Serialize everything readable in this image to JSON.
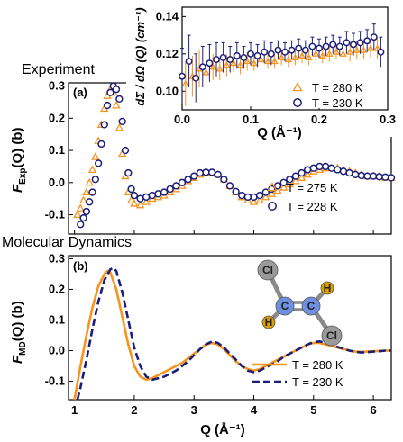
{
  "headings": {
    "experiment": "Experiment",
    "md": "Molecular Dynamics"
  },
  "chart_data": [
    {
      "id": "experiment",
      "type": "scatter",
      "panel_label": "(a)",
      "xlabel": "",
      "ylabel": "F_Exp(Q) (b)",
      "xlim": [
        0.9,
        6.3
      ],
      "ylim": [
        -0.16,
        0.31
      ],
      "yticks": [
        "-0.1",
        "0.0",
        "0.1",
        "0.2",
        "0.3"
      ],
      "legend_position": "lower-right",
      "series": [
        {
          "name": "T = 275 K",
          "marker": "triangle",
          "color": "#f7941d",
          "x": [
            1.05,
            1.1,
            1.15,
            1.2,
            1.25,
            1.3,
            1.35,
            1.4,
            1.45,
            1.5,
            1.55,
            1.6,
            1.65,
            1.7,
            1.75,
            1.8,
            1.85,
            1.9,
            1.95,
            2.0,
            2.1,
            2.2,
            2.3,
            2.4,
            2.5,
            2.6,
            2.7,
            2.8,
            2.9,
            3.0,
            3.1,
            3.2,
            3.3,
            3.4,
            3.5,
            3.6,
            3.7,
            3.8,
            3.9,
            4.0,
            4.1,
            4.2,
            4.3,
            4.4,
            4.5,
            4.6,
            4.7,
            4.8,
            4.9,
            5.0,
            5.1,
            5.2,
            5.3,
            5.4,
            5.5,
            5.6,
            5.7,
            5.8,
            5.9,
            6.0,
            6.1,
            6.2,
            6.3
          ],
          "y": [
            -0.1,
            -0.08,
            -0.055,
            -0.03,
            0.0,
            0.04,
            0.08,
            0.13,
            0.18,
            0.23,
            0.27,
            0.29,
            0.28,
            0.24,
            0.17,
            0.09,
            0.02,
            -0.03,
            -0.055,
            -0.065,
            -0.07,
            -0.06,
            -0.05,
            -0.045,
            -0.04,
            -0.03,
            -0.02,
            -0.01,
            0.005,
            0.015,
            0.025,
            0.03,
            0.03,
            0.025,
            0.01,
            -0.01,
            -0.03,
            -0.045,
            -0.055,
            -0.06,
            -0.055,
            -0.045,
            -0.035,
            -0.025,
            -0.015,
            -0.005,
            0.005,
            0.015,
            0.025,
            0.035,
            0.04,
            0.045,
            0.045,
            0.045,
            0.04,
            0.035,
            0.03,
            0.025,
            0.02,
            0.02,
            0.02,
            0.015,
            0.015
          ]
        },
        {
          "name": "T = 228 K",
          "marker": "circle",
          "color": "#1b1f7a",
          "x": [
            1.1,
            1.15,
            1.2,
            1.25,
            1.3,
            1.35,
            1.4,
            1.45,
            1.5,
            1.55,
            1.6,
            1.65,
            1.7,
            1.75,
            1.8,
            1.85,
            1.9,
            1.95,
            2.0,
            2.1,
            2.2,
            2.3,
            2.4,
            2.5,
            2.6,
            2.7,
            2.8,
            2.9,
            3.0,
            3.1,
            3.2,
            3.3,
            3.4,
            3.5,
            3.6,
            3.7,
            3.8,
            3.9,
            4.0,
            4.1,
            4.2,
            4.3,
            4.4,
            4.5,
            4.6,
            4.7,
            4.8,
            4.9,
            5.0,
            5.1,
            5.2,
            5.3,
            5.4,
            5.5,
            5.6,
            5.7,
            5.8,
            5.9,
            6.0,
            6.1,
            6.2,
            6.3
          ],
          "y": [
            -0.13,
            -0.11,
            -0.09,
            -0.06,
            -0.03,
            0.01,
            0.06,
            0.12,
            0.18,
            0.24,
            0.28,
            0.3,
            0.29,
            0.26,
            0.19,
            0.1,
            0.03,
            -0.02,
            -0.04,
            -0.05,
            -0.045,
            -0.04,
            -0.035,
            -0.03,
            -0.02,
            -0.01,
            0.0,
            0.01,
            0.02,
            0.03,
            0.032,
            0.032,
            0.025,
            0.01,
            -0.01,
            -0.028,
            -0.04,
            -0.045,
            -0.045,
            -0.04,
            -0.03,
            -0.02,
            -0.01,
            0.0,
            0.01,
            0.02,
            0.03,
            0.04,
            0.045,
            0.05,
            0.05,
            0.045,
            0.04,
            0.035,
            0.03,
            0.025,
            0.022,
            0.02,
            0.02,
            0.018,
            0.017,
            0.015
          ]
        }
      ]
    },
    {
      "id": "inset",
      "type": "scatter",
      "xlabel": "Q (Å⁻¹)",
      "ylabel": "dΣ / dΩ (Q) (cm⁻¹)",
      "xlim": [
        0.0,
        0.3
      ],
      "ylim": [
        0.09,
        0.145
      ],
      "xticks": [
        "0.0",
        "0.1",
        "0.2",
        "0.3"
      ],
      "yticks": [
        "0.10",
        "0.12",
        "0.14"
      ],
      "legend_position": "lower-right",
      "series": [
        {
          "name": "T = 280 K",
          "marker": "triangle",
          "color": "#f7941d",
          "x": [
            0.005,
            0.015,
            0.025,
            0.035,
            0.045,
            0.055,
            0.065,
            0.075,
            0.085,
            0.095,
            0.105,
            0.115,
            0.125,
            0.135,
            0.145,
            0.155,
            0.165,
            0.175,
            0.185,
            0.195,
            0.205,
            0.215,
            0.225,
            0.235,
            0.245,
            0.255,
            0.265,
            0.275,
            0.285
          ],
          "y": [
            0.104,
            0.108,
            0.112,
            0.11,
            0.113,
            0.112,
            0.114,
            0.115,
            0.114,
            0.116,
            0.115,
            0.117,
            0.116,
            0.116,
            0.118,
            0.117,
            0.118,
            0.119,
            0.118,
            0.12,
            0.119,
            0.12,
            0.121,
            0.12,
            0.121,
            0.122,
            0.122,
            0.123,
            0.123
          ],
          "err": [
            0.012,
            0.011,
            0.01,
            0.008,
            0.007,
            0.006,
            0.006,
            0.005,
            0.005,
            0.005,
            0.004,
            0.004,
            0.004,
            0.004,
            0.004,
            0.004,
            0.004,
            0.004,
            0.004,
            0.004,
            0.004,
            0.004,
            0.004,
            0.004,
            0.005,
            0.005,
            0.005,
            0.005,
            0.006
          ]
        },
        {
          "name": "T = 230 K",
          "marker": "circle",
          "color": "#1b1f7a",
          "x": [
            0.0,
            0.01,
            0.02,
            0.03,
            0.04,
            0.05,
            0.06,
            0.07,
            0.08,
            0.09,
            0.1,
            0.11,
            0.12,
            0.13,
            0.14,
            0.15,
            0.16,
            0.17,
            0.18,
            0.19,
            0.2,
            0.21,
            0.22,
            0.23,
            0.24,
            0.25,
            0.26,
            0.27,
            0.28,
            0.29
          ],
          "y": [
            0.108,
            0.116,
            0.107,
            0.113,
            0.115,
            0.117,
            0.118,
            0.117,
            0.119,
            0.118,
            0.12,
            0.119,
            0.121,
            0.12,
            0.122,
            0.121,
            0.122,
            0.123,
            0.122,
            0.124,
            0.123,
            0.124,
            0.125,
            0.124,
            0.126,
            0.125,
            0.126,
            0.127,
            0.129,
            0.121
          ],
          "err": [
            0.015,
            0.014,
            0.013,
            0.011,
            0.01,
            0.009,
            0.008,
            0.007,
            0.007,
            0.006,
            0.006,
            0.006,
            0.006,
            0.006,
            0.005,
            0.005,
            0.005,
            0.005,
            0.005,
            0.005,
            0.005,
            0.005,
            0.005,
            0.005,
            0.006,
            0.006,
            0.006,
            0.006,
            0.007,
            0.008
          ]
        }
      ]
    },
    {
      "id": "md",
      "type": "line",
      "panel_label": "(b)",
      "xlabel": "Q (Å⁻¹)",
      "ylabel": "F_MD(Q) (b)",
      "xlim": [
        0.9,
        6.3
      ],
      "ylim": [
        -0.16,
        0.31
      ],
      "xticks": [
        "1",
        "2",
        "3",
        "4",
        "5",
        "6"
      ],
      "yticks": [
        "-0.1",
        "0.0",
        "0.1",
        "0.2",
        "0.3"
      ],
      "legend_position": "lower-right",
      "series": [
        {
          "name": "T = 280 K",
          "style": "solid",
          "color": "#f7941d",
          "x": [
            1.0,
            1.1,
            1.2,
            1.3,
            1.4,
            1.5,
            1.55,
            1.6,
            1.7,
            1.8,
            1.9,
            2.0,
            2.1,
            2.2,
            2.3,
            2.4,
            2.5,
            2.6,
            2.7,
            2.8,
            2.9,
            3.0,
            3.1,
            3.2,
            3.3,
            3.4,
            3.5,
            3.6,
            3.7,
            3.8,
            3.9,
            4.0,
            4.1,
            4.2,
            4.3,
            4.4,
            4.5,
            4.6,
            4.7,
            4.8,
            4.9,
            5.0,
            5.1,
            5.2,
            5.3,
            5.4,
            5.5,
            5.6,
            5.7,
            5.8,
            5.9,
            6.0,
            6.1,
            6.2,
            6.3
          ],
          "y": [
            -0.16,
            -0.05,
            0.05,
            0.14,
            0.21,
            0.25,
            0.26,
            0.255,
            0.2,
            0.11,
            0.02,
            -0.05,
            -0.085,
            -0.095,
            -0.09,
            -0.08,
            -0.07,
            -0.06,
            -0.05,
            -0.04,
            -0.025,
            -0.01,
            0.005,
            0.02,
            0.025,
            0.02,
            0.005,
            -0.015,
            -0.035,
            -0.05,
            -0.06,
            -0.065,
            -0.06,
            -0.05,
            -0.04,
            -0.03,
            -0.02,
            -0.01,
            0.0,
            0.01,
            0.02,
            0.025,
            0.025,
            0.02,
            0.015,
            0.01,
            0.005,
            0.0,
            -0.003,
            -0.004,
            -0.003,
            -0.002,
            -0.001,
            0.0,
            0.0
          ]
        },
        {
          "name": "T = 230 K",
          "style": "dashed",
          "color": "#1b1f7a",
          "x": [
            1.05,
            1.1,
            1.2,
            1.3,
            1.4,
            1.5,
            1.6,
            1.65,
            1.7,
            1.8,
            1.9,
            2.0,
            2.1,
            2.2,
            2.3,
            2.4,
            2.5,
            2.6,
            2.7,
            2.8,
            2.9,
            3.0,
            3.1,
            3.2,
            3.3,
            3.4,
            3.5,
            3.6,
            3.7,
            3.8,
            3.9,
            4.0,
            4.1,
            4.2,
            4.3,
            4.4,
            4.5,
            4.6,
            4.7,
            4.8,
            4.9,
            5.0,
            5.1,
            5.2,
            5.3,
            5.4,
            5.5,
            5.6,
            5.7,
            5.8,
            5.9,
            6.0,
            6.1,
            6.2,
            6.3
          ],
          "y": [
            -0.16,
            -0.12,
            -0.03,
            0.07,
            0.16,
            0.23,
            0.265,
            0.27,
            0.26,
            0.19,
            0.1,
            0.01,
            -0.05,
            -0.085,
            -0.095,
            -0.09,
            -0.085,
            -0.075,
            -0.065,
            -0.05,
            -0.035,
            -0.015,
            0.005,
            0.02,
            0.03,
            0.025,
            0.01,
            -0.01,
            -0.03,
            -0.05,
            -0.065,
            -0.07,
            -0.065,
            -0.055,
            -0.045,
            -0.035,
            -0.02,
            -0.01,
            0.0,
            0.01,
            0.02,
            0.028,
            0.03,
            0.025,
            0.02,
            0.012,
            0.006,
            0.0,
            -0.004,
            -0.006,
            -0.005,
            -0.003,
            -0.002,
            0.0,
            0.0
          ]
        }
      ]
    }
  ],
  "molecule": {
    "atom_labels": {
      "cl": "Cl",
      "c": "C",
      "h": "H"
    },
    "colors": {
      "cl": "#9a9a9a",
      "c": "#6f8fe0",
      "h": "#d9a000",
      "bond": "#8a8a8a"
    }
  }
}
